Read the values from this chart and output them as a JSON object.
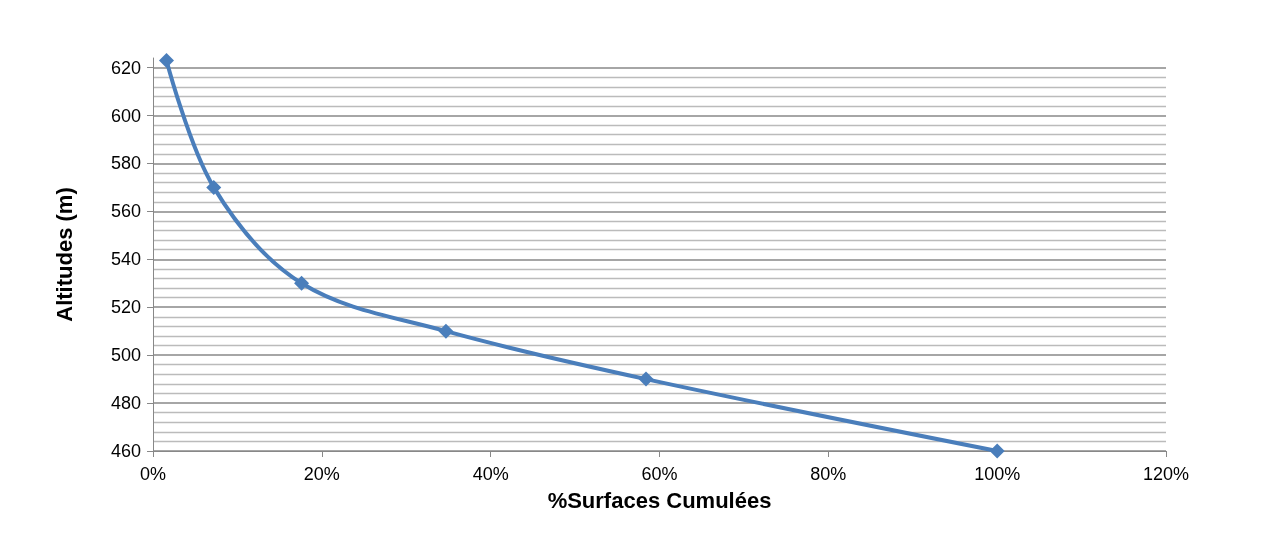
{
  "chart_data": {
    "type": "line",
    "xlabel": "%Surfaces Cumulées",
    "ylabel": "Altitudes (m)",
    "x": [
      1.6,
      7.2,
      17.6,
      34.7,
      58.4,
      100
    ],
    "series": [
      {
        "color": "#4a7ebb",
        "values": [
          623,
          570,
          530,
          510,
          490,
          460
        ]
      }
    ],
    "xlim": [
      0,
      120
    ],
    "xticks": [
      {
        "value": 0,
        "label": "0%"
      },
      {
        "value": 20,
        "label": "20%"
      },
      {
        "value": 40,
        "label": "40%"
      },
      {
        "value": 60,
        "label": "60%"
      },
      {
        "value": 80,
        "label": "80%"
      },
      {
        "value": 100,
        "label": "100%"
      },
      {
        "value": 120,
        "label": "120%"
      }
    ],
    "ylim": [
      460,
      624
    ],
    "yticks": [
      460,
      480,
      500,
      520,
      540,
      560,
      580,
      600,
      620
    ],
    "grid": "y",
    "marker": "diamond",
    "line_style": "solid"
  }
}
